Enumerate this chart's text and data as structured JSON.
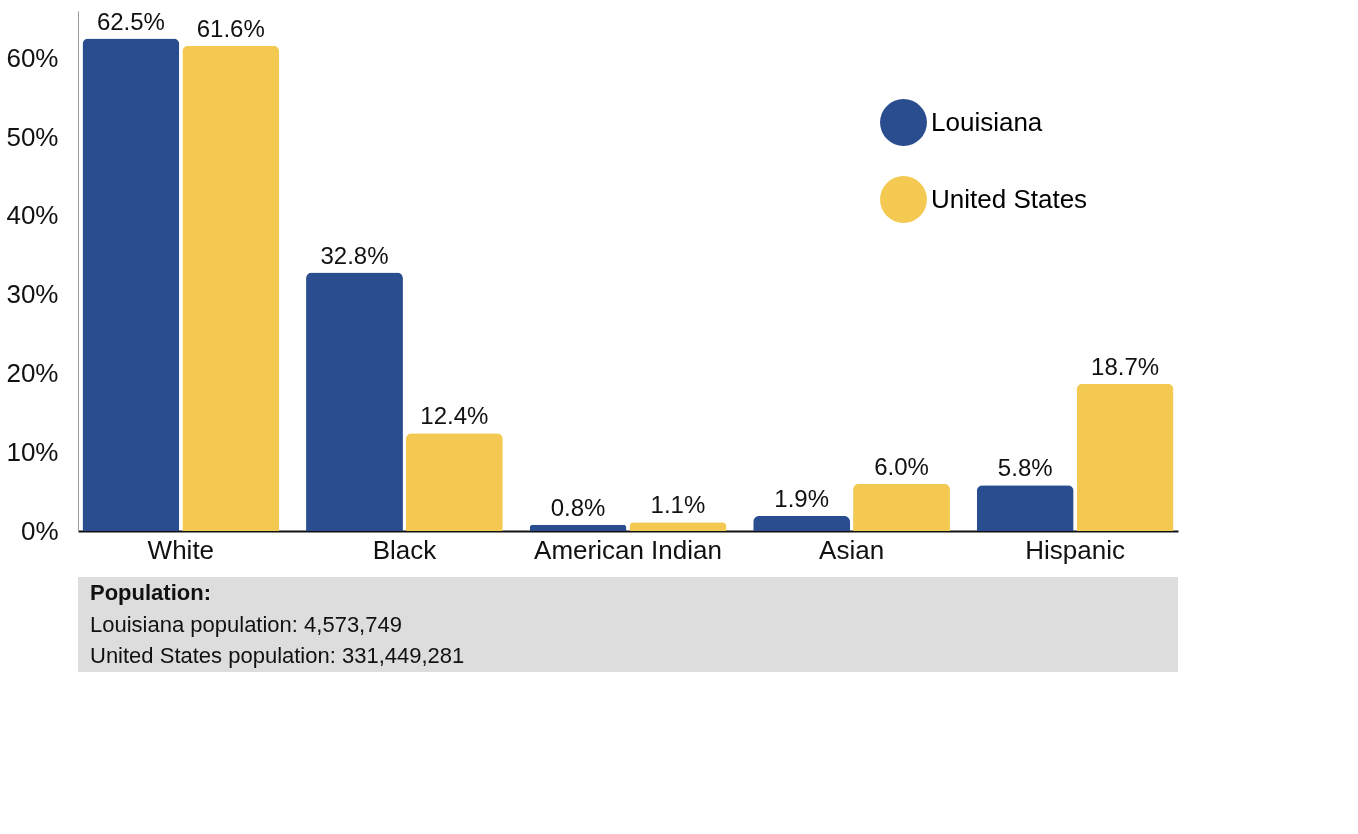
{
  "chart_data": {
    "type": "bar",
    "categories": [
      "White",
      "Black",
      "American Indian",
      "Asian",
      "Hispanic"
    ],
    "series": [
      {
        "name": "Louisiana",
        "color": "#294d8f",
        "values": [
          62.5,
          32.8,
          0.8,
          1.9,
          5.8
        ],
        "value_labels": [
          "62.5%",
          "32.8%",
          "0.8%",
          "1.9%",
          "5.8%"
        ]
      },
      {
        "name": "United States",
        "color": "#f4c952",
        "values": [
          61.6,
          12.4,
          1.1,
          6.0,
          18.7
        ],
        "value_labels": [
          "61.6%",
          "12.4%",
          "1.1%",
          "6.0%",
          "18.7%"
        ]
      }
    ],
    "ylim": [
      0,
      66
    ],
    "yticks": [
      {
        "value": 0,
        "label": "0%"
      },
      {
        "value": 10,
        "label": "10%"
      },
      {
        "value": 20,
        "label": "20%"
      },
      {
        "value": 30,
        "label": "30%"
      },
      {
        "value": 40,
        "label": "40%"
      },
      {
        "value": 50,
        "label": "50%"
      },
      {
        "value": 60,
        "label": "60%"
      }
    ],
    "grid": false,
    "legend": "top right",
    "annotations": [
      "Population:",
      "Louisiana population: 4,573,749",
      "United States population: 331,449,281"
    ]
  }
}
